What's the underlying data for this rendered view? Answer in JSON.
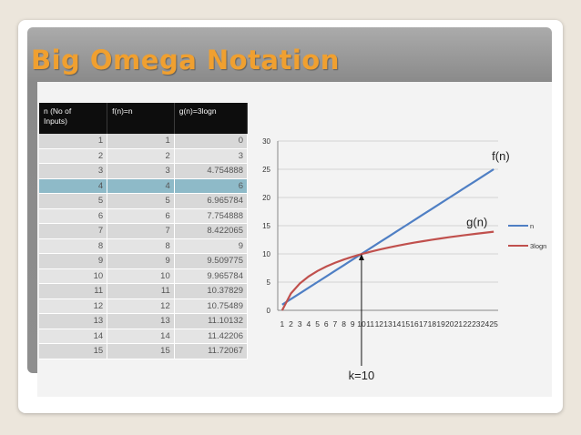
{
  "slide": {
    "title": "Big Omega Notation"
  },
  "table": {
    "headers": [
      "n (No of\nInputs)",
      "f(n)=n",
      "g(n)=3logn"
    ],
    "highlight_row": 3,
    "rows": [
      [
        "1",
        "1",
        "0"
      ],
      [
        "2",
        "2",
        "3"
      ],
      [
        "3",
        "3",
        "4.754888"
      ],
      [
        "4",
        "4",
        "6"
      ],
      [
        "5",
        "5",
        "6.965784"
      ],
      [
        "6",
        "6",
        "7.754888"
      ],
      [
        "7",
        "7",
        "8.422065"
      ],
      [
        "8",
        "8",
        "9"
      ],
      [
        "9",
        "9",
        "9.509775"
      ],
      [
        "10",
        "10",
        "9.965784"
      ],
      [
        "11",
        "11",
        "10.37829"
      ],
      [
        "12",
        "12",
        "10.75489"
      ],
      [
        "13",
        "13",
        "11.10132"
      ],
      [
        "14",
        "14",
        "11.42206"
      ],
      [
        "15",
        "15",
        "11.72067"
      ]
    ]
  },
  "chart_data": {
    "type": "line",
    "x": [
      1,
      2,
      3,
      4,
      5,
      6,
      7,
      8,
      9,
      10,
      11,
      12,
      13,
      14,
      15,
      16,
      17,
      18,
      19,
      20,
      21,
      22,
      23,
      24,
      25
    ],
    "series": [
      {
        "name": "n",
        "color": "#4f7fc4",
        "values": [
          1,
          2,
          3,
          4,
          5,
          6,
          7,
          8,
          9,
          10,
          11,
          12,
          13,
          14,
          15,
          16,
          17,
          18,
          19,
          20,
          21,
          22,
          23,
          24,
          25
        ]
      },
      {
        "name": "3logn",
        "color": "#c0504d",
        "values": [
          0,
          3,
          4.754888,
          6,
          6.965784,
          7.754888,
          8.422065,
          9,
          9.509775,
          9.965784,
          10.37829,
          10.75489,
          11.10132,
          11.42206,
          11.72067,
          12,
          12.26,
          12.51,
          12.74,
          12.97,
          13.18,
          13.38,
          13.57,
          13.75,
          13.93
        ]
      }
    ],
    "ylim": [
      0,
      30
    ],
    "yticks": [
      0,
      5,
      10,
      15,
      20,
      25,
      30
    ],
    "grid": true,
    "legend": "right",
    "annotations": {
      "f_label": "f(n)",
      "g_label": "g(n)",
      "k_label": "k=10",
      "k_value": 10
    }
  }
}
